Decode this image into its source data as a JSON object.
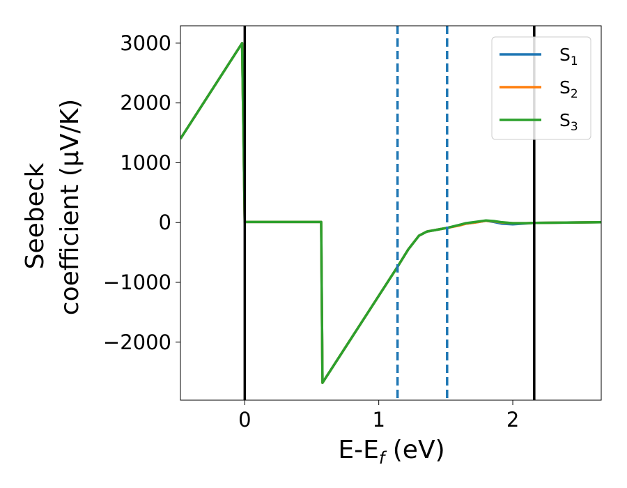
{
  "chart_data": {
    "type": "line",
    "xlabel_main": "E-E",
    "xlabel_sub": "f",
    "xlabel_tail": " (eV)",
    "ylabel_line1": "Seebeck",
    "ylabel_line2": "coefficient  (μV/K)",
    "xlim": [
      -0.48,
      2.66
    ],
    "ylim": [
      -2970,
      3290
    ],
    "xticks": [
      0,
      1,
      2
    ],
    "xtick_labels": [
      "0",
      "1",
      "2"
    ],
    "yticks": [
      -2000,
      -1000,
      0,
      1000,
      2000,
      3000
    ],
    "ytick_labels": [
      "−2000",
      "−1000",
      "0",
      "1000",
      "2000",
      "3000"
    ],
    "grid": false,
    "legend_position": "top-right",
    "vlines": [
      {
        "x": 0.0,
        "style": "solid",
        "color": "#000000"
      },
      {
        "x": 2.16,
        "style": "solid",
        "color": "#000000"
      },
      {
        "x": 1.14,
        "style": "dashed",
        "color": "#1f77b4"
      },
      {
        "x": 1.51,
        "style": "dashed",
        "color": "#1f77b4"
      }
    ],
    "series": [
      {
        "name_base": "S",
        "name_sub": "1",
        "color": "#1f77b4",
        "x": [
          -0.48,
          -0.02,
          0.0,
          0.57,
          0.58,
          1.14,
          1.22,
          1.3,
          1.36,
          1.51,
          1.6,
          1.65,
          1.72,
          1.8,
          1.86,
          1.92,
          2.0,
          2.1,
          2.16,
          2.4,
          2.66
        ],
        "y": [
          1400,
          3000,
          10,
          10,
          -2680,
          -740,
          -450,
          -220,
          -150,
          -90,
          -40,
          -20,
          0,
          30,
          10,
          -20,
          -30,
          -15,
          -5,
          0,
          5
        ]
      },
      {
        "name_base": "S",
        "name_sub": "2",
        "color": "#ff7f0e",
        "x": [
          -0.48,
          -0.02,
          0.0,
          0.57,
          0.58,
          1.14,
          1.22,
          1.3,
          1.36,
          1.51,
          1.6,
          1.65,
          1.72,
          1.8,
          1.86,
          1.92,
          2.0,
          2.1,
          2.16,
          2.4,
          2.66
        ],
        "y": [
          1400,
          3000,
          10,
          10,
          -2680,
          -740,
          -450,
          -220,
          -150,
          -90,
          -50,
          -20,
          0,
          30,
          20,
          0,
          -10,
          -10,
          -5,
          0,
          5
        ]
      },
      {
        "name_base": "S",
        "name_sub": "3",
        "color": "#2ca02c",
        "x": [
          -0.48,
          -0.02,
          0.0,
          0.57,
          0.58,
          1.14,
          1.22,
          1.3,
          1.36,
          1.51,
          1.6,
          1.65,
          1.72,
          1.8,
          1.86,
          1.92,
          2.0,
          2.1,
          2.16,
          2.4,
          2.66
        ],
        "y": [
          1400,
          3000,
          10,
          10,
          -2680,
          -740,
          -450,
          -220,
          -150,
          -90,
          -40,
          -10,
          10,
          35,
          25,
          5,
          -10,
          -10,
          -5,
          0,
          5
        ]
      }
    ]
  }
}
